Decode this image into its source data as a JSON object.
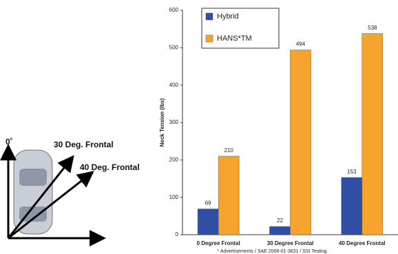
{
  "diagram": {
    "vertical_label": "0˚",
    "labels": [
      "30 Deg. Frontal",
      "40 Deg. Frontal"
    ]
  },
  "chart_data": {
    "type": "bar",
    "y_label": "Neck Tension (lbs)",
    "categories": [
      "0 Degree Frontal",
      "30 Degree Frontal",
      "40 Degree Frontal"
    ],
    "series": [
      {
        "name": "Hybrid",
        "color": "#2f4fa6",
        "values": [
          69,
          22,
          153
        ]
      },
      {
        "name": "HANS*TM",
        "color": "#f6a42e",
        "values": [
          210,
          494,
          538
        ]
      }
    ],
    "ylim": [
      0,
      600
    ],
    "yticks": [
      0,
      100,
      200,
      300,
      400,
      500,
      600
    ],
    "grid": false,
    "legend": "top-left",
    "footnote": "* Advertisements / SAE 2006-01-3631 / SSI Testing"
  }
}
